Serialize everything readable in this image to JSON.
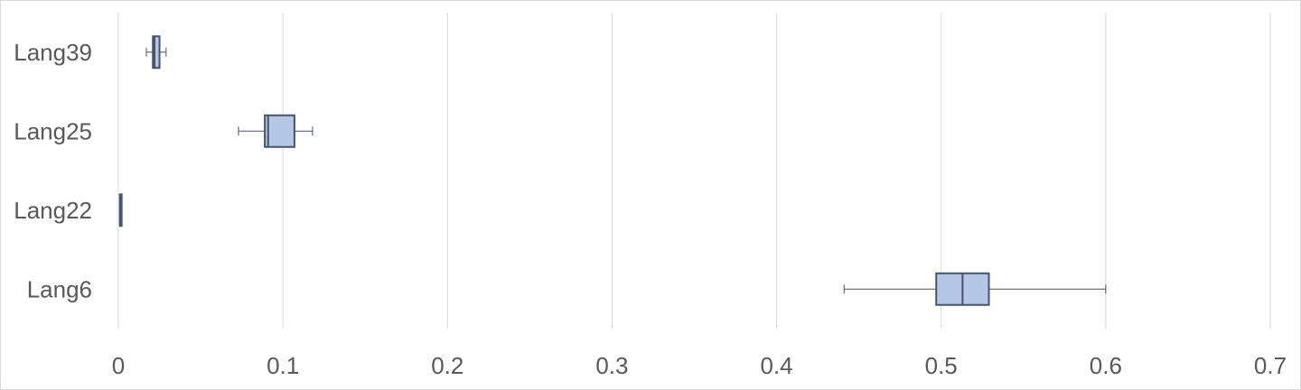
{
  "chart_data": {
    "type": "boxplot",
    "orientation": "horizontal",
    "title": "",
    "xlabel": "",
    "ylabel": "",
    "xlim": [
      0,
      0.7
    ],
    "xticks": [
      "0",
      "0.1",
      "0.2",
      "0.3",
      "0.4",
      "0.5",
      "0.6",
      "0.7"
    ],
    "grid": true,
    "colors": {
      "box_fill": "#b4c7e7",
      "box_stroke": "#44546a",
      "grid": "#d9d9d9"
    },
    "categories": [
      "Lang39",
      "Lang25",
      "Lang22",
      "Lang6"
    ],
    "boxes": [
      {
        "name": "Lang39",
        "min": 0.017,
        "q1": 0.021,
        "median": 0.022,
        "q3": 0.025,
        "max": 0.029
      },
      {
        "name": "Lang25",
        "min": 0.073,
        "q1": 0.089,
        "median": 0.091,
        "q3": 0.107,
        "max": 0.118
      },
      {
        "name": "Lang22",
        "min": 0.001,
        "q1": 0.001,
        "median": 0.001,
        "q3": 0.002,
        "max": 0.002
      },
      {
        "name": "Lang6",
        "min": 0.441,
        "q1": 0.497,
        "median": 0.513,
        "q3": 0.529,
        "max": 0.6
      }
    ]
  }
}
